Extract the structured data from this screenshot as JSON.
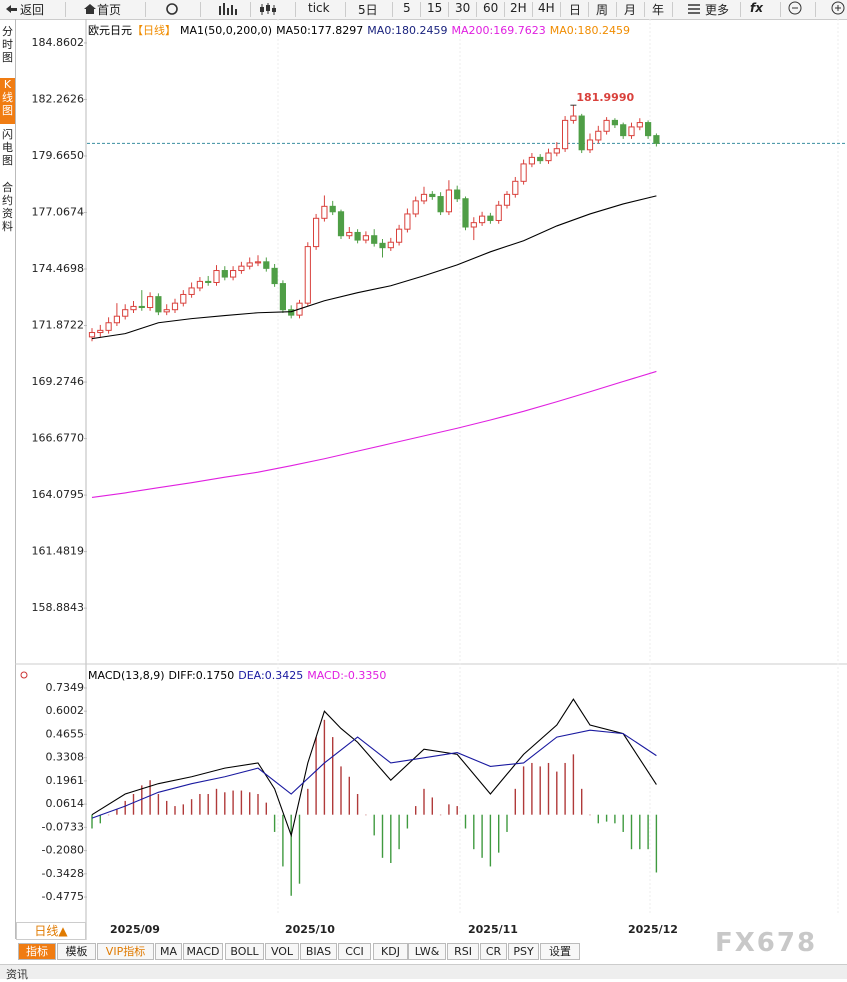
{
  "toolbar": {
    "items": [
      "返回",
      "首页",
      "tick",
      "5日",
      "5",
      "15",
      "30",
      "60",
      "2H",
      "4H",
      "日",
      "周",
      "月",
      "年",
      "更多",
      "fx"
    ]
  },
  "side_tabs": [
    "分时图",
    "K线图",
    "闪电图",
    "合约资料"
  ],
  "chart_data": [
    {
      "type": "candlestick",
      "title": "欧元日元",
      "subtitle": "【日线】",
      "indicators": [
        {
          "label": "MA1(50,0,200,0)",
          "color": "#000000"
        },
        {
          "label": "MA50:177.8297",
          "color": "#000000"
        },
        {
          "label": "MA0:180.2459",
          "color": "#1a237e"
        },
        {
          "label": "MA200:169.7623",
          "color": "#e020e0"
        },
        {
          "label": "MA0:180.2459",
          "color": "#f08c00"
        }
      ],
      "open": [
        171.35,
        171.55,
        171.65,
        172.0,
        172.3,
        172.6,
        172.75,
        172.7,
        173.2,
        172.5,
        172.6,
        172.9,
        173.3,
        173.6,
        173.9,
        173.85,
        174.4,
        174.1,
        174.4,
        174.6,
        174.75,
        174.8,
        174.5,
        173.8,
        172.6,
        172.35,
        172.9,
        175.5,
        176.8,
        177.35,
        177.1,
        176.0,
        176.15,
        175.8,
        176.0,
        175.65,
        175.45,
        175.7,
        176.3,
        177.0,
        177.6,
        177.9,
        177.8,
        177.1,
        178.1,
        177.7,
        176.4,
        176.6,
        176.9,
        176.7,
        177.4,
        177.9,
        178.5,
        179.3,
        179.6,
        179.45,
        179.8,
        180.0,
        181.3,
        181.5,
        179.95,
        180.4,
        180.8,
        181.3,
        181.1,
        180.6,
        181.0,
        181.2,
        180.6
      ],
      "high": [
        171.75,
        171.9,
        172.25,
        172.9,
        172.85,
        173.0,
        173.5,
        173.4,
        173.35,
        172.85,
        173.1,
        173.5,
        173.85,
        174.1,
        174.15,
        174.65,
        174.6,
        174.6,
        174.8,
        175.0,
        175.1,
        175.0,
        174.7,
        173.95,
        172.8,
        173.05,
        175.7,
        177.0,
        177.85,
        177.6,
        177.2,
        176.4,
        176.3,
        176.2,
        176.3,
        175.85,
        175.9,
        176.5,
        177.25,
        177.8,
        178.25,
        178.05,
        178.0,
        178.55,
        178.3,
        177.8,
        176.85,
        177.1,
        177.05,
        177.6,
        178.05,
        178.7,
        179.5,
        179.8,
        179.75,
        180.0,
        180.3,
        181.5,
        181.999,
        181.6,
        180.7,
        181.05,
        181.45,
        181.4,
        181.2,
        181.2,
        181.4,
        181.3,
        180.7
      ],
      "low": [
        171.15,
        171.35,
        171.5,
        171.85,
        172.15,
        172.45,
        172.55,
        172.55,
        172.35,
        172.35,
        172.45,
        172.75,
        173.15,
        173.45,
        173.7,
        173.7,
        173.95,
        173.95,
        174.25,
        174.45,
        174.6,
        174.35,
        173.65,
        172.45,
        172.2,
        172.2,
        172.75,
        175.35,
        176.65,
        176.95,
        175.85,
        175.85,
        175.65,
        175.65,
        175.5,
        175.0,
        175.3,
        175.55,
        176.15,
        176.85,
        177.45,
        177.65,
        176.95,
        176.95,
        177.55,
        176.25,
        175.8,
        176.45,
        176.55,
        176.55,
        177.25,
        177.75,
        178.35,
        179.15,
        179.3,
        179.3,
        179.65,
        179.85,
        181.15,
        179.8,
        179.8,
        180.25,
        180.65,
        180.95,
        180.45,
        180.45,
        180.85,
        180.45,
        180.1
      ],
      "close": [
        171.55,
        171.65,
        172.0,
        172.3,
        172.6,
        172.75,
        172.7,
        173.2,
        172.5,
        172.6,
        172.9,
        173.3,
        173.6,
        173.9,
        173.85,
        174.4,
        174.1,
        174.4,
        174.6,
        174.75,
        174.8,
        174.5,
        173.8,
        172.6,
        172.35,
        172.9,
        175.5,
        176.8,
        177.35,
        177.1,
        176.0,
        176.15,
        175.8,
        176.0,
        175.65,
        175.45,
        175.7,
        176.3,
        177.0,
        177.6,
        177.9,
        177.8,
        177.1,
        178.1,
        177.7,
        176.4,
        176.6,
        176.9,
        176.7,
        177.4,
        177.9,
        178.5,
        179.3,
        179.6,
        179.45,
        179.8,
        180.0,
        181.3,
        181.5,
        179.95,
        180.4,
        180.8,
        181.3,
        181.1,
        180.6,
        181.0,
        181.2,
        180.6,
        180.2459
      ],
      "up_color": "#d9413c",
      "down_color": "#4f9e46",
      "lines": [
        {
          "color": "#000000",
          "x": [
            0,
            4,
            8,
            12,
            16,
            20,
            24,
            28,
            32,
            36,
            40,
            44,
            48,
            52,
            56,
            60,
            64,
            68
          ],
          "values": [
            171.27,
            171.5,
            172.0,
            172.19,
            172.33,
            172.46,
            172.51,
            173.01,
            173.38,
            173.7,
            174.16,
            174.66,
            175.26,
            175.77,
            176.45,
            177.0,
            177.46,
            177.8297
          ]
        },
        {
          "color": "#e020e0",
          "x": [
            0,
            4,
            8,
            12,
            16,
            20,
            24,
            28,
            32,
            36,
            40,
            44,
            48,
            52,
            56,
            60,
            64,
            68
          ],
          "values": [
            163.97,
            164.18,
            164.42,
            164.65,
            164.9,
            165.13,
            165.43,
            165.75,
            166.1,
            166.45,
            166.8,
            167.15,
            167.53,
            167.93,
            168.37,
            168.83,
            169.3,
            169.7623
          ]
        }
      ],
      "max_label": {
        "value": 181.999,
        "label": "181.9990"
      },
      "reference_line": 180.2459,
      "ylim": [
        156.5,
        185.96
      ],
      "yticks": [
        184.8602,
        182.2626,
        {
          "value": 179.665,
          "label": "179.6650"
        },
        177.0674,
        174.4698,
        171.8722,
        169.2746,
        {
          "value": 166.677,
          "label": "166.6770"
        },
        164.0795,
        161.4819,
        158.8843
      ]
    },
    {
      "type": "macd",
      "title": "MACD(13,8,9)",
      "lines": [
        {
          "label": "DIFF:0.1750",
          "color": "#000000",
          "x": [
            0,
            4,
            8,
            12,
            16,
            20,
            22,
            24,
            26,
            28,
            30,
            32,
            36,
            40,
            44,
            48,
            52,
            56,
            58,
            60,
            64,
            68
          ],
          "values": [
            0.0,
            0.12,
            0.18,
            0.22,
            0.27,
            0.3,
            0.15,
            -0.12,
            0.3,
            0.6,
            0.5,
            0.42,
            0.2,
            0.38,
            0.35,
            0.12,
            0.35,
            0.52,
            0.67,
            0.52,
            0.47,
            0.175
          ]
        },
        {
          "label": "DEA:0.3425",
          "color": "#1a1aa0",
          "x": [
            0,
            4,
            8,
            12,
            16,
            20,
            24,
            28,
            32,
            36,
            40,
            44,
            48,
            52,
            56,
            60,
            64,
            68
          ],
          "values": [
            -0.02,
            0.05,
            0.13,
            0.18,
            0.22,
            0.27,
            0.12,
            0.3,
            0.45,
            0.3,
            0.33,
            0.36,
            0.28,
            0.3,
            0.45,
            0.49,
            0.47,
            0.3425
          ]
        }
      ],
      "histogram": {
        "label": "MACD:-0.3350",
        "color": "#e020e0",
        "up_color": "#b03a3a",
        "down_color": "#3f9a3f",
        "values": [
          -0.08,
          -0.05,
          0.0,
          0.03,
          0.08,
          0.12,
          0.17,
          0.2,
          0.12,
          0.08,
          0.05,
          0.06,
          0.09,
          0.12,
          0.12,
          0.15,
          0.13,
          0.14,
          0.14,
          0.13,
          0.12,
          0.07,
          -0.1,
          -0.3,
          -0.47,
          -0.4,
          0.15,
          0.45,
          0.55,
          0.45,
          0.28,
          0.22,
          0.12,
          0.0,
          -0.12,
          -0.25,
          -0.28,
          -0.2,
          -0.08,
          0.05,
          0.15,
          0.1,
          0.0,
          0.06,
          0.05,
          -0.08,
          -0.2,
          -0.25,
          -0.3,
          -0.22,
          -0.1,
          0.15,
          0.28,
          0.3,
          0.28,
          0.3,
          0.25,
          0.3,
          0.35,
          0.15,
          0.0,
          -0.05,
          -0.04,
          -0.05,
          -0.1,
          -0.2,
          -0.2,
          -0.2,
          -0.335
        ]
      },
      "ylim": [
        -0.5815,
        0.781
      ],
      "yticks": [
        0.7349,
        0.6002,
        0.4655,
        0.3308,
        0.1961,
        0.0614,
        -0.0733,
        {
          "value": -0.208,
          "label": "-0.2080"
        },
        -0.3428,
        -0.4775
      ],
      "x_labels": [
        "2025/09",
        "2025/10",
        "2025/11",
        "2025/12"
      ]
    }
  ],
  "bottom_bar": {
    "period": "日线▲",
    "tabs": [
      "指标",
      "模板",
      "VIP指标",
      "MA",
      "MACD",
      "BOLL",
      "VOL",
      "BIAS",
      "CCI",
      "KDJ",
      "LW&",
      "RSI",
      "CR",
      "PSY",
      "设置"
    ]
  },
  "footer": "资讯",
  "watermark": "FX678"
}
